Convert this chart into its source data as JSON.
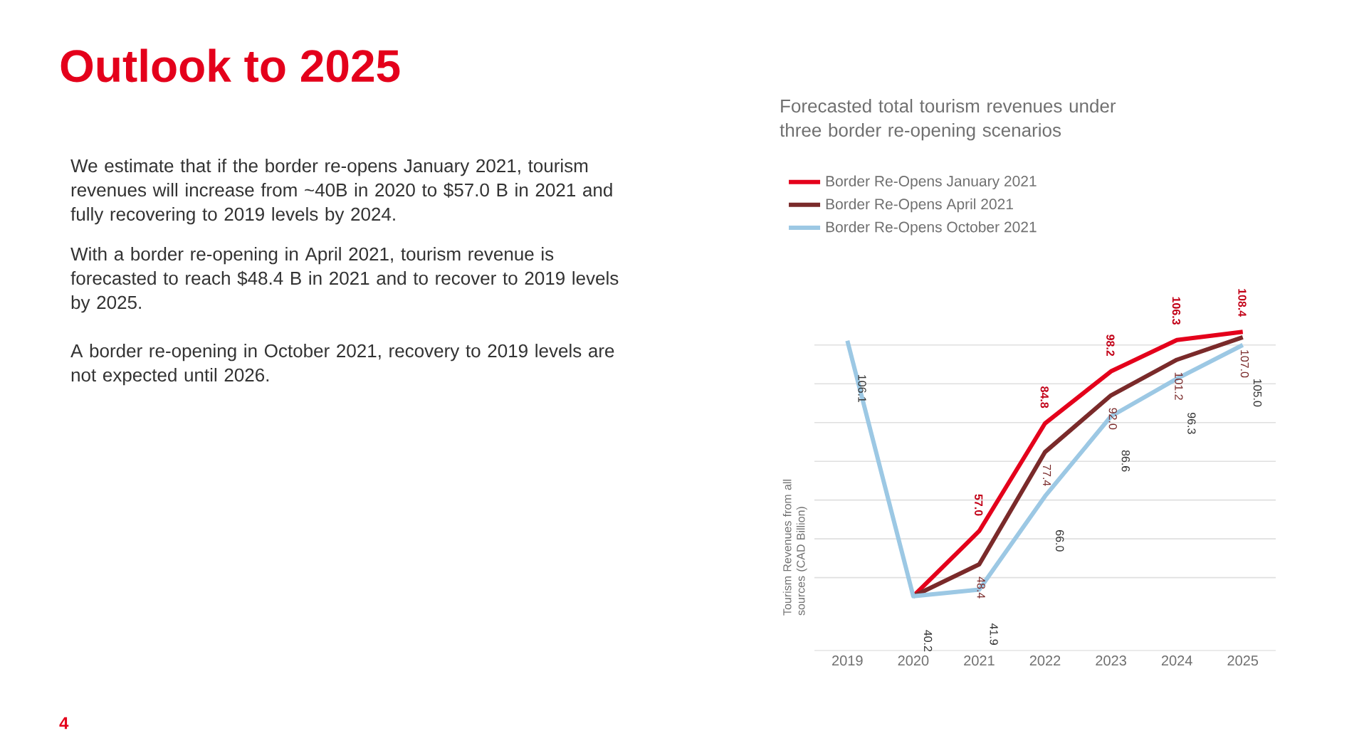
{
  "chart_data": {
    "type": "line",
    "title": "Outlook to 2025",
    "subtitle": "Forecasted total tourism revenues under three border re-opening scenarios",
    "ylabel": "Tourism Revenues from all sources (CAD Billion)",
    "annotations": [
      "We estimate that if the border re-opens January 2021, tourism revenues will increase from ~40B in 2020 to $57.0 B in 2021 and fully recovering to 2019 levels by 2024.",
      "With a border re-opening in April 2021, tourism revenue is forecasted to reach $48.4 B in 2021 and to recover to 2019 levels by 2025.",
      "A border re-opening in October 2021, recovery to 2019 levels are not expected until 2026.",
      "4"
    ],
    "categories": [
      "2019",
      "2020",
      "2021",
      "2022",
      "2023",
      "2024",
      "2025"
    ],
    "series": [
      {
        "name": "Border Re-Opens January 2021",
        "color": "#e4001b",
        "values": [
          null,
          40.2,
          57.0,
          84.8,
          98.2,
          106.3,
          108.4
        ],
        "value_labels": [
          null,
          null,
          "57.0",
          "84.8",
          "98.2",
          "106.3",
          "108.4"
        ]
      },
      {
        "name": "Border Re-Opens April 2021",
        "color": "#7a2a2a",
        "values": [
          null,
          40.2,
          48.4,
          77.4,
          92.0,
          101.2,
          107.0
        ],
        "value_labels": [
          null,
          null,
          "48.4",
          "77.4",
          "92.0",
          "101.2",
          "107.0"
        ]
      },
      {
        "name": "Border Re-Opens October 2021",
        "color": "#9cc8e4",
        "values": [
          106.1,
          40.2,
          41.9,
          66.0,
          86.6,
          96.3,
          105.0
        ],
        "value_labels": [
          "106.1",
          "40.2",
          "41.9",
          "66.0",
          "86.6",
          "96.3",
          "105.0"
        ]
      }
    ],
    "yticks": [
      {
        "value": 45,
        "label": null
      },
      {
        "value": 55,
        "label": null
      },
      {
        "value": 65,
        "label": null
      },
      {
        "value": 75,
        "label": null
      },
      {
        "value": 85,
        "label": null
      },
      {
        "value": 95,
        "label": null
      },
      {
        "value": 105,
        "label": null
      }
    ],
    "tick_labels": "x",
    "grid": "y",
    "legend": "top left",
    "marker": "none",
    "line_style": "solid"
  }
}
